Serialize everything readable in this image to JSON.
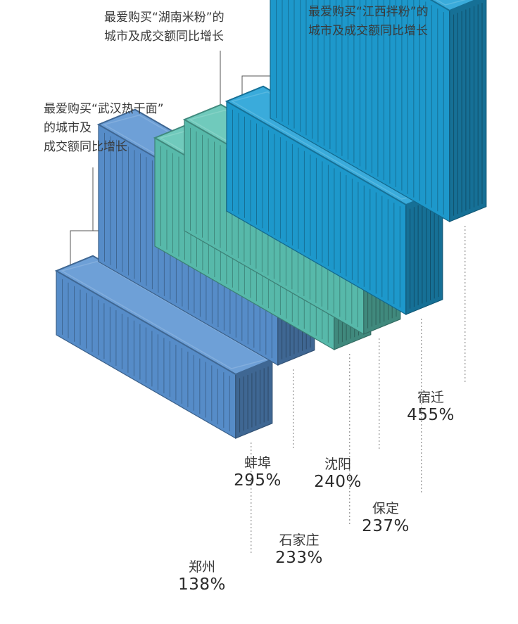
{
  "chart_data": {
    "type": "bar",
    "style": "isometric shipping containers",
    "unit": "%",
    "groups": [
      {
        "note": "最爱购买“武汉热干面”\n的城市及\n成交额同比增长",
        "color": "#5a93d2",
        "items": [
          {
            "category": "郑州",
            "value": 138,
            "label": "138%"
          },
          {
            "category": "蚌埠",
            "value": 295,
            "label": "295%"
          }
        ]
      },
      {
        "note": "最爱购买“湖南米粉”的\n城市及成交额同比增长",
        "color": "#5cc3b3",
        "items": [
          {
            "category": "石家庄",
            "value": 233,
            "label": "233%"
          },
          {
            "category": "沈阳",
            "value": 240,
            "label": "240%"
          }
        ]
      },
      {
        "note": "最爱购买“江西拌粉”的\n城市及成交额同比增长",
        "color": "#1fa0d6",
        "items": [
          {
            "category": "保定",
            "value": 237,
            "label": "237%"
          },
          {
            "category": "宿迁",
            "value": 455,
            "label": "455%"
          }
        ]
      }
    ]
  }
}
